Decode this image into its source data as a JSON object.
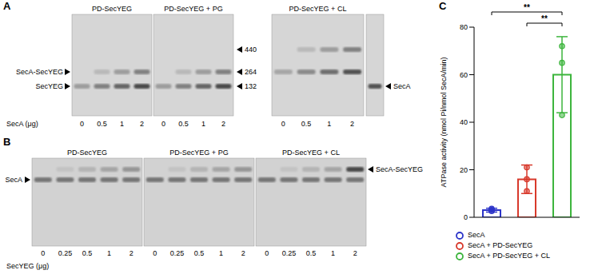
{
  "figure": {
    "A": {
      "letter": "A",
      "gels": [
        {
          "title": "PD-SecYEG",
          "lanes": [
            0,
            0.5,
            1,
            2
          ]
        },
        {
          "title": "PD-SecYEG + PG",
          "lanes": [
            0,
            0.5,
            1,
            2
          ]
        },
        {
          "title": "PD-SecYEG + CL",
          "lanes": [
            0,
            0.5,
            1,
            2
          ]
        }
      ],
      "left_labels": [
        "SecA-SecYEG",
        "SecYEG"
      ],
      "size_markers": [
        440,
        264,
        132
      ],
      "right_label": "SecA",
      "lane_axis_label": "SecA (μg)"
    },
    "B": {
      "letter": "B",
      "gels": [
        {
          "title": "PD-SecYEG",
          "lanes": [
            0,
            0.25,
            0.5,
            1,
            2
          ]
        },
        {
          "title": "PD-SecYEG + PG",
          "lanes": [
            0,
            0.25,
            0.5,
            1,
            2
          ]
        },
        {
          "title": "PD-SecYEG + CL",
          "lanes": [
            0,
            0.25,
            0.5,
            1,
            2
          ]
        }
      ],
      "left_label": "SecA",
      "right_label": "SecA-SecYEG",
      "lane_axis_label": "SecYEG (μg)"
    },
    "C": {
      "letter": "C"
    }
  },
  "chart_data": {
    "type": "bar",
    "ylabel": "ATPase activity (nmol Pi/nmol SecA/min)",
    "categories": [
      null,
      null,
      null
    ],
    "series": [
      {
        "name": "SecA",
        "color": "#2d35c9",
        "values": [
          3,
          null,
          null
        ],
        "error": [
          0.8,
          null,
          null
        ],
        "points": [
          [
            2.6,
            3.1,
            3.6
          ],
          null,
          null
        ]
      },
      {
        "name": "SecA + PD-SecYEG",
        "color": "#d8392b",
        "values": [
          null,
          16,
          null
        ],
        "error": [
          null,
          6,
          null
        ],
        "points": [
          null,
          [
            21,
            16,
            11
          ],
          null
        ]
      },
      {
        "name": "SecA + PD-SecYEG + CL",
        "color": "#3db53d",
        "values": [
          null,
          null,
          60
        ],
        "error": [
          null,
          null,
          16
        ],
        "points": [
          null,
          null,
          [
            72,
            65,
            43
          ]
        ]
      }
    ],
    "ylim": [
      0,
      80
    ],
    "yticks": [
      0,
      20,
      40,
      60,
      80
    ],
    "tick_labels": "y",
    "legend": "bottom",
    "annotations": [
      {
        "text": "**",
        "from": 0,
        "to": 2
      },
      {
        "text": "**",
        "from": 1,
        "to": 2
      }
    ]
  }
}
